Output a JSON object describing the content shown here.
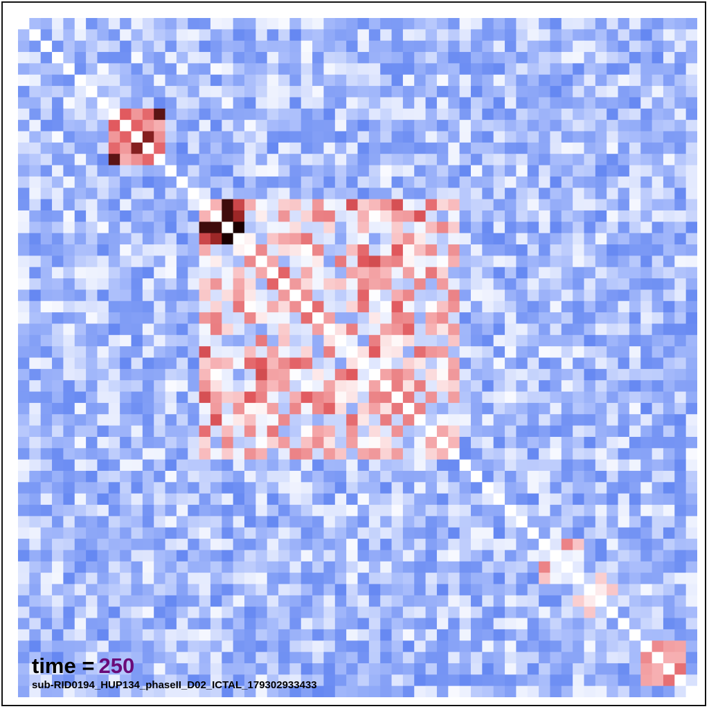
{
  "time_prefix": "time =",
  "time_value": "250",
  "time_value_color": "#6a0a78",
  "subject_label": "sub-RID0194_HUP134_phaseII_D02_ICTAL_179302933433",
  "chart_data": {
    "type": "heatmap",
    "title": "",
    "xlabel": "",
    "ylabel": "",
    "n": 60,
    "diagonal": "white (self-connectivity)",
    "colormap": [
      "#5a7ff0",
      "#a8bcfb",
      "#ffffff",
      "#f7b3b5",
      "#e0575c",
      "#a52a2a",
      "#1a0000"
    ],
    "blocks": [
      {
        "range": [
          8,
          12
        ],
        "level": "strong-positive"
      },
      {
        "range": [
          16,
          19
        ],
        "level": "strong-positive"
      },
      {
        "range": [
          16,
          38
        ],
        "level": "moderate-positive"
      },
      {
        "range": [
          46,
          49
        ],
        "level": "weak-positive"
      },
      {
        "range": [
          49,
          52
        ],
        "level": "weak-positive"
      },
      {
        "range": [
          55,
          58
        ],
        "level": "weak-positive"
      }
    ],
    "grid": false,
    "legend": "none"
  }
}
